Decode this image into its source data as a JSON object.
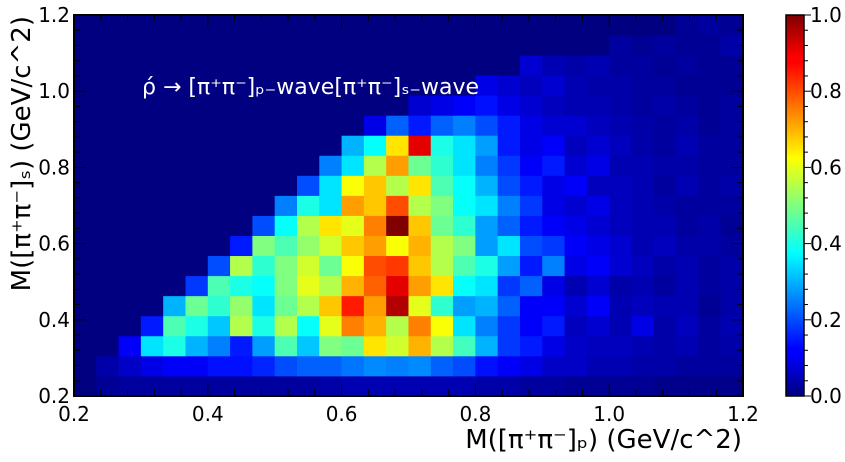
{
  "chart_data": {
    "type": "heatmap",
    "xlabel": "M([π⁺π⁻]ₚ) (GeV/c^2)",
    "ylabel": "M([π⁺π⁻]ₛ) (GeV/c^2)",
    "annotation": "ρ́ → [π⁺π⁻]ₚ₋wave[π⁺π⁻]ₛ₋wave",
    "xlim": [
      0.2,
      1.2
    ],
    "ylim": [
      0.2,
      1.2
    ],
    "x_ticks": [
      "0.2",
      "0.4",
      "0.6",
      "0.8",
      "1.0",
      "1.2"
    ],
    "y_ticks": [
      "0.2",
      "0.4",
      "0.6",
      "0.8",
      "1.0",
      "1.2"
    ],
    "colorbar": {
      "range": [
        0.0,
        1.0
      ],
      "ticks": [
        "0.0",
        "0.2",
        "0.4",
        "0.6",
        "0.8",
        "1.0"
      ],
      "colormap": "jet"
    },
    "bins": {
      "nx": 30,
      "ny": 19,
      "x_origin": 0.2,
      "y_origin": 0.2,
      "dx": 0.03333,
      "dy": 0.05263
    },
    "grid": false,
    "z": [
      [
        0.0,
        0.02,
        0.03,
        0.03,
        0.03,
        0.03,
        0.03,
        0.03,
        0.03,
        0.03,
        0.03,
        0.04,
        0.05,
        0.05,
        0.05,
        0.05,
        0.05,
        0.05,
        0.04,
        0.04,
        0.03,
        0.03,
        0.02,
        0.02,
        0.02,
        0.02,
        0.01,
        0.01,
        0.01,
        0.01
      ],
      [
        0.0,
        0.04,
        0.07,
        0.1,
        0.12,
        0.12,
        0.14,
        0.14,
        0.16,
        0.2,
        0.22,
        0.22,
        0.24,
        0.26,
        0.25,
        0.26,
        0.22,
        0.2,
        0.14,
        0.12,
        0.1,
        0.07,
        0.07,
        0.05,
        0.05,
        0.04,
        0.04,
        0.03,
        0.03,
        0.03
      ],
      [
        0.0,
        0.0,
        0.12,
        0.35,
        0.4,
        0.3,
        0.25,
        0.15,
        0.28,
        0.45,
        0.32,
        0.5,
        0.48,
        0.65,
        0.58,
        0.7,
        0.55,
        0.44,
        0.3,
        0.18,
        0.15,
        0.1,
        0.07,
        0.06,
        0.06,
        0.05,
        0.04,
        0.05,
        0.03,
        0.04
      ],
      [
        0.0,
        0.0,
        0.0,
        0.15,
        0.45,
        0.4,
        0.32,
        0.55,
        0.4,
        0.55,
        0.38,
        0.6,
        0.75,
        0.7,
        0.55,
        0.75,
        0.62,
        0.35,
        0.25,
        0.18,
        0.12,
        0.15,
        0.06,
        0.08,
        0.05,
        0.1,
        0.04,
        0.06,
        0.03,
        0.05
      ],
      [
        0.0,
        0.0,
        0.0,
        0.0,
        0.3,
        0.48,
        0.42,
        0.52,
        0.35,
        0.48,
        0.55,
        0.68,
        0.85,
        0.72,
        0.95,
        0.6,
        0.42,
        0.28,
        0.3,
        0.22,
        0.12,
        0.12,
        0.08,
        0.12,
        0.05,
        0.06,
        0.05,
        0.05,
        0.02,
        0.04
      ],
      [
        0.0,
        0.0,
        0.0,
        0.0,
        0.0,
        0.18,
        0.45,
        0.4,
        0.38,
        0.5,
        0.6,
        0.55,
        0.7,
        0.78,
        0.9,
        0.72,
        0.65,
        0.38,
        0.35,
        0.18,
        0.22,
        0.1,
        0.05,
        0.08,
        0.04,
        0.05,
        0.03,
        0.05,
        0.03,
        0.04
      ],
      [
        0.0,
        0.0,
        0.0,
        0.0,
        0.0,
        0.0,
        0.2,
        0.55,
        0.42,
        0.5,
        0.58,
        0.48,
        0.62,
        0.8,
        0.82,
        0.68,
        0.55,
        0.45,
        0.4,
        0.28,
        0.15,
        0.25,
        0.1,
        0.12,
        0.08,
        0.06,
        0.04,
        0.05,
        0.03,
        0.04
      ],
      [
        0.0,
        0.0,
        0.0,
        0.0,
        0.0,
        0.0,
        0.0,
        0.15,
        0.5,
        0.45,
        0.52,
        0.58,
        0.68,
        0.72,
        0.62,
        0.7,
        0.55,
        0.5,
        0.28,
        0.35,
        0.2,
        0.18,
        0.12,
        0.1,
        0.08,
        0.05,
        0.06,
        0.04,
        0.04,
        0.03
      ],
      [
        0.0,
        0.0,
        0.0,
        0.0,
        0.0,
        0.0,
        0.0,
        0.0,
        0.2,
        0.38,
        0.55,
        0.65,
        0.6,
        0.75,
        1.0,
        0.68,
        0.48,
        0.42,
        0.28,
        0.22,
        0.15,
        0.12,
        0.1,
        0.08,
        0.06,
        0.05,
        0.05,
        0.03,
        0.04,
        0.02
      ],
      [
        0.0,
        0.0,
        0.0,
        0.0,
        0.0,
        0.0,
        0.0,
        0.0,
        0.0,
        0.25,
        0.4,
        0.35,
        0.72,
        0.68,
        0.8,
        0.55,
        0.5,
        0.38,
        0.35,
        0.25,
        0.18,
        0.1,
        0.08,
        0.1,
        0.06,
        0.05,
        0.04,
        0.03,
        0.03,
        0.03
      ],
      [
        0.0,
        0.0,
        0.0,
        0.0,
        0.0,
        0.0,
        0.0,
        0.0,
        0.0,
        0.0,
        0.2,
        0.35,
        0.62,
        0.68,
        0.55,
        0.65,
        0.45,
        0.38,
        0.3,
        0.2,
        0.15,
        0.1,
        0.12,
        0.06,
        0.06,
        0.05,
        0.03,
        0.05,
        0.03,
        0.04
      ],
      [
        0.0,
        0.0,
        0.0,
        0.0,
        0.0,
        0.0,
        0.0,
        0.0,
        0.0,
        0.0,
        0.0,
        0.25,
        0.35,
        0.55,
        0.72,
        0.48,
        0.42,
        0.35,
        0.25,
        0.18,
        0.12,
        0.15,
        0.08,
        0.1,
        0.05,
        0.05,
        0.04,
        0.04,
        0.03,
        0.03
      ],
      [
        0.0,
        0.0,
        0.0,
        0.0,
        0.0,
        0.0,
        0.0,
        0.0,
        0.0,
        0.0,
        0.0,
        0.0,
        0.3,
        0.38,
        0.65,
        0.9,
        0.4,
        0.35,
        0.28,
        0.15,
        0.1,
        0.12,
        0.06,
        0.08,
        0.06,
        0.04,
        0.03,
        0.05,
        0.03,
        0.03
      ],
      [
        0.0,
        0.0,
        0.0,
        0.0,
        0.0,
        0.0,
        0.0,
        0.0,
        0.0,
        0.0,
        0.0,
        0.0,
        0.0,
        0.1,
        0.22,
        0.15,
        0.22,
        0.25,
        0.2,
        0.15,
        0.1,
        0.08,
        0.08,
        0.06,
        0.05,
        0.04,
        0.03,
        0.04,
        0.02,
        0.03
      ],
      [
        0.0,
        0.0,
        0.0,
        0.0,
        0.0,
        0.0,
        0.0,
        0.0,
        0.0,
        0.0,
        0.0,
        0.0,
        0.0,
        0.0,
        0.0,
        0.08,
        0.1,
        0.12,
        0.14,
        0.1,
        0.08,
        0.06,
        0.05,
        0.05,
        0.04,
        0.03,
        0.04,
        0.03,
        0.02,
        0.03
      ],
      [
        0.0,
        0.0,
        0.0,
        0.0,
        0.0,
        0.0,
        0.0,
        0.0,
        0.0,
        0.0,
        0.0,
        0.0,
        0.0,
        0.0,
        0.0,
        0.0,
        0.0,
        0.0,
        0.1,
        0.08,
        0.06,
        0.08,
        0.05,
        0.04,
        0.04,
        0.03,
        0.03,
        0.02,
        0.02,
        0.02
      ],
      [
        0.0,
        0.0,
        0.0,
        0.0,
        0.0,
        0.0,
        0.0,
        0.0,
        0.0,
        0.0,
        0.0,
        0.0,
        0.0,
        0.0,
        0.0,
        0.0,
        0.0,
        0.0,
        0.0,
        0.0,
        0.08,
        0.05,
        0.04,
        0.05,
        0.03,
        0.03,
        0.02,
        0.03,
        0.02,
        0.02
      ],
      [
        0.0,
        0.0,
        0.0,
        0.0,
        0.0,
        0.0,
        0.0,
        0.0,
        0.0,
        0.0,
        0.0,
        0.0,
        0.0,
        0.0,
        0.0,
        0.0,
        0.0,
        0.0,
        0.0,
        0.0,
        0.0,
        0.0,
        0.0,
        0.0,
        0.03,
        0.02,
        0.03,
        0.02,
        0.02,
        0.04
      ],
      [
        0.0,
        0.0,
        0.0,
        0.0,
        0.0,
        0.0,
        0.0,
        0.0,
        0.0,
        0.0,
        0.0,
        0.0,
        0.0,
        0.0,
        0.0,
        0.0,
        0.0,
        0.0,
        0.0,
        0.0,
        0.0,
        0.0,
        0.0,
        0.0,
        0.0,
        0.0,
        0.0,
        0.02,
        0.03,
        0.02
      ]
    ]
  }
}
